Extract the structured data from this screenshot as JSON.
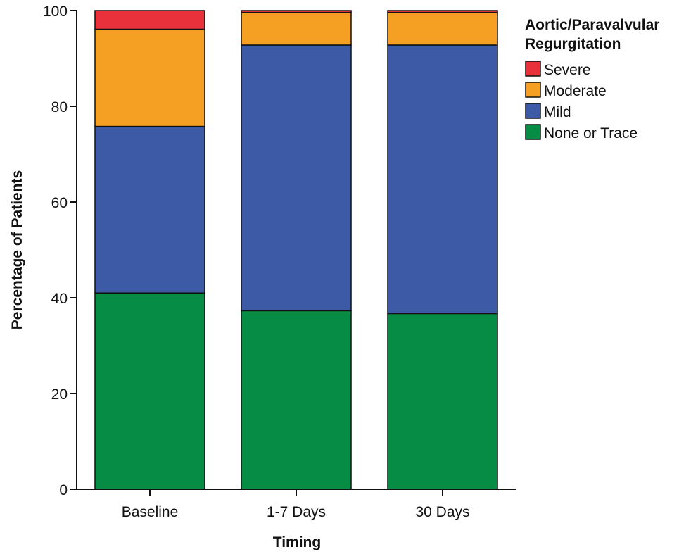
{
  "chart_data": {
    "type": "bar",
    "stacked": true,
    "categories": [
      "Baseline",
      "1-7 Days",
      "30 Days"
    ],
    "series": [
      {
        "name": "None or Trace",
        "color": "#078c46",
        "values": [
          41.0,
          37.3,
          36.7
        ]
      },
      {
        "name": "Mild",
        "color": "#3c5aa6",
        "values": [
          34.8,
          55.5,
          56.1
        ]
      },
      {
        "name": "Moderate",
        "color": "#f5a023",
        "values": [
          20.3,
          6.8,
          6.8
        ]
      },
      {
        "name": "Severe",
        "color": "#e8313a",
        "values": [
          3.9,
          0.4,
          0.4
        ]
      }
    ],
    "xlabel": "Timing",
    "ylabel": "Percentage of Patients",
    "ylim": [
      0,
      100
    ],
    "yticks": [
      0,
      20,
      40,
      60,
      80,
      100
    ],
    "grid": false,
    "legend": {
      "title_lines": [
        "Aortic/Paravalvular",
        "Regurgitation"
      ],
      "order": [
        "Severe",
        "Moderate",
        "Mild",
        "None or Trace"
      ],
      "placement": "right-top"
    }
  }
}
